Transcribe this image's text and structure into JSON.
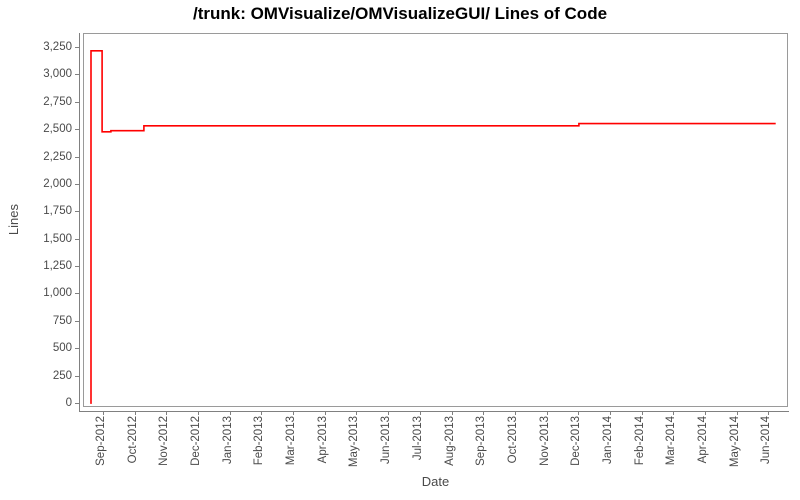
{
  "title": "/trunk: OMVisualize/OMVisualizeGUI/ Lines of Code",
  "colors": {
    "series_red": "#ff0000",
    "plot_border": "#9a9a9a",
    "axis_line": "#808080",
    "tick_label": "#4a4a4a",
    "title_text": "#000000",
    "background": "#ffffff"
  },
  "chart_data": {
    "type": "line",
    "title": "/trunk: OMVisualize/OMVisualizeGUI/ Lines of Code",
    "xlabel": "Date",
    "ylabel": "Lines",
    "grid": false,
    "legend_position": "none",
    "x_tick_labels": [
      "Sep-2012",
      "Oct-2012",
      "Nov-2012",
      "Dec-2012",
      "Jan-2013",
      "Feb-2013",
      "Mar-2013",
      "Apr-2013",
      "May-2013",
      "Jun-2013",
      "Jul-2013",
      "Aug-2013",
      "Sep-2013",
      "Oct-2013",
      "Nov-2013",
      "Dec-2013",
      "Jan-2014",
      "Feb-2014",
      "Mar-2014",
      "Apr-2014",
      "May-2014",
      "Jun-2014"
    ],
    "y_tick_values": [
      0,
      250,
      500,
      750,
      1000,
      1250,
      1500,
      1750,
      2000,
      2250,
      2500,
      2750,
      3000,
      3250
    ],
    "y_tick_labels": [
      "0",
      "250",
      "500",
      "750",
      "1,000",
      "1,250",
      "1,500",
      "1,750",
      "2,000",
      "2,250",
      "2,500",
      "2,750",
      "3,000",
      "3,250"
    ],
    "ylim": [
      -37,
      3378
    ],
    "xlim_month_offset": [
      -0.63,
      21.62
    ],
    "series": [
      {
        "name": "Lines of Code",
        "color": "#ff0000",
        "points": [
          {
            "date": "2012-08-19",
            "month_offset": -0.41,
            "lines": 0
          },
          {
            "date": "2012-08-19",
            "month_offset": -0.41,
            "lines": 3225
          },
          {
            "date": "2012-08-30",
            "month_offset": -0.06,
            "lines": 3225
          },
          {
            "date": "2012-08-30",
            "month_offset": -0.06,
            "lines": 2485
          },
          {
            "date": "2012-09-07",
            "month_offset": 0.22,
            "lines": 2485
          },
          {
            "date": "2012-09-07",
            "month_offset": 0.22,
            "lines": 2495
          },
          {
            "date": "2012-10-09",
            "month_offset": 1.26,
            "lines": 2495
          },
          {
            "date": "2012-10-09",
            "month_offset": 1.26,
            "lines": 2540
          },
          {
            "date": "2013-12-01",
            "month_offset": 14.99,
            "lines": 2540
          },
          {
            "date": "2013-12-01",
            "month_offset": 14.99,
            "lines": 2560
          },
          {
            "date": "2014-06-07",
            "month_offset": 21.2,
            "lines": 2560
          }
        ]
      }
    ]
  }
}
